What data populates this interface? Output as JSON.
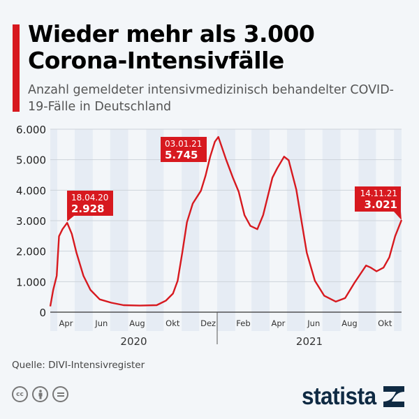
{
  "header": {
    "title": "Wieder mehr als 3.000 Corona-Intensivfälle",
    "subtitle": "Anzahl gemeldeter intensivmedizinisch behandelter COVID-19-Fälle in Deutschland"
  },
  "footer": {
    "source": "Quelle: DIVI-Intensivregister",
    "license_icons": [
      "cc-icon",
      "by-icon",
      "nd-icon"
    ],
    "logo": "statista"
  },
  "colors": {
    "accent": "#d7191f",
    "background": "#f3f6f9",
    "band": "#e6ecf4",
    "logo": "#0f2a43"
  },
  "chart_data": {
    "type": "line",
    "title": "",
    "xlabel": "",
    "ylabel": "",
    "ylim": [
      0,
      6000
    ],
    "yticks": [
      "0",
      "1.000",
      "2.000",
      "3.000",
      "4.000",
      "5.000",
      "6.000"
    ],
    "xlim": [
      "2020-03-20",
      "2021-11-14"
    ],
    "month_labels": {
      "2": "Feb",
      "4": "Apr",
      "6": "Jun",
      "8": "Aug",
      "10": "Okt",
      "12": "Dez"
    },
    "year_labels": [
      "2020",
      "2021"
    ],
    "grid": true,
    "shaded_alternate_months": true,
    "series": [
      {
        "color": "#d7191f",
        "points": [
          [
            "2020-03-20",
            190
          ],
          [
            "2020-03-25",
            730
          ],
          [
            "2020-03-31",
            1190
          ],
          [
            "2020-04-04",
            2490
          ],
          [
            "2020-04-10",
            2720
          ],
          [
            "2020-04-18",
            2928
          ],
          [
            "2020-04-26",
            2570
          ],
          [
            "2020-05-04",
            1950
          ],
          [
            "2020-05-16",
            1190
          ],
          [
            "2020-05-28",
            730
          ],
          [
            "2020-06-13",
            420
          ],
          [
            "2020-07-03",
            310
          ],
          [
            "2020-07-24",
            230
          ],
          [
            "2020-08-21",
            215
          ],
          [
            "2020-09-19",
            230
          ],
          [
            "2020-10-05",
            380
          ],
          [
            "2020-10-17",
            610
          ],
          [
            "2020-10-25",
            1030
          ],
          [
            "2020-11-02",
            1950
          ],
          [
            "2020-11-10",
            2950
          ],
          [
            "2020-11-20",
            3560
          ],
          [
            "2020-12-04",
            3980
          ],
          [
            "2020-12-12",
            4480
          ],
          [
            "2020-12-20",
            5100
          ],
          [
            "2020-12-28",
            5590
          ],
          [
            "2021-01-03",
            5745
          ],
          [
            "2021-01-16",
            5020
          ],
          [
            "2021-01-28",
            4410
          ],
          [
            "2021-02-07",
            3950
          ],
          [
            "2021-02-17",
            3180
          ],
          [
            "2021-02-27",
            2830
          ],
          [
            "2021-03-11",
            2720
          ],
          [
            "2021-03-21",
            3180
          ],
          [
            "2021-04-06",
            4410
          ],
          [
            "2021-04-14",
            4710
          ],
          [
            "2021-04-26",
            5100
          ],
          [
            "2021-05-04",
            4980
          ],
          [
            "2021-05-17",
            4020
          ],
          [
            "2021-05-25",
            3100
          ],
          [
            "2021-06-04",
            1950
          ],
          [
            "2021-06-18",
            1030
          ],
          [
            "2021-07-04",
            540
          ],
          [
            "2021-07-24",
            345
          ],
          [
            "2021-08-09",
            460
          ],
          [
            "2021-08-25",
            960
          ],
          [
            "2021-09-14",
            1530
          ],
          [
            "2021-09-22",
            1460
          ],
          [
            "2021-10-02",
            1340
          ],
          [
            "2021-10-14",
            1460
          ],
          [
            "2021-10-24",
            1800
          ],
          [
            "2021-11-03",
            2490
          ],
          [
            "2021-11-14",
            3021
          ]
        ]
      }
    ],
    "annotations": [
      {
        "date_label": "18.04.20",
        "value_label": "2.928",
        "x": "2020-04-18",
        "y": 2928
      },
      {
        "date_label": "03.01.21",
        "value_label": "5.745",
        "x": "2021-01-03",
        "y": 5745
      },
      {
        "date_label": "14.11.21",
        "value_label": "3.021",
        "x": "2021-11-14",
        "y": 3021
      }
    ]
  }
}
